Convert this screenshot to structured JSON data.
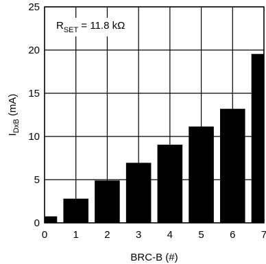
{
  "chart_data": {
    "type": "bar",
    "x": [
      0,
      1,
      2,
      3,
      4,
      5,
      6,
      7
    ],
    "values": [
      0.75,
      2.8,
      4.9,
      6.95,
      9.05,
      11.15,
      13.2,
      19.55
    ],
    "xlabel": "BRC-B (#)",
    "ylabel": {
      "main": "I",
      "sub": "DxB",
      "rest": " (mA)"
    },
    "annotation": {
      "main": "R",
      "sub": "SET",
      "rest": " = 11.8 kΩ"
    },
    "x_ticks": [
      "0",
      "1",
      "2",
      "3",
      "4",
      "5",
      "6",
      "7"
    ],
    "y_ticks": [
      "0",
      "5",
      "10",
      "15",
      "20",
      "25"
    ],
    "xlim": [
      0,
      7
    ],
    "ylim": [
      0,
      25
    ],
    "grid": true,
    "bar_color": "#000000",
    "grid_color": "#000000"
  }
}
